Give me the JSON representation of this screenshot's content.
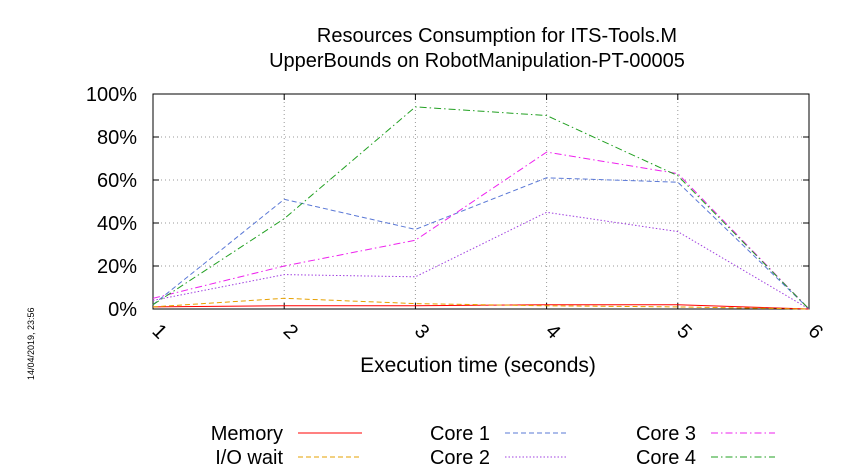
{
  "chart_data": {
    "type": "line",
    "title_lines": [
      "Resources Consumption for ITS-Tools.M",
      "UpperBounds on RobotManipulation-PT-00005"
    ],
    "xlabel": "Execution time (seconds)",
    "ylabel": "",
    "x": [
      1,
      2,
      3,
      4,
      5,
      6
    ],
    "x_tick_labels": [
      "1",
      "2",
      "3",
      "4",
      "5",
      "6"
    ],
    "xlim": [
      1,
      6
    ],
    "ylim": [
      0,
      100
    ],
    "y_ticks": [
      0,
      20,
      40,
      60,
      80,
      100
    ],
    "y_tick_labels": [
      "0%",
      "20%",
      "40%",
      "60%",
      "80%",
      "100%"
    ],
    "grid": true,
    "legend_position": "bottom",
    "timestamp": "14/04/2019, 23:56",
    "series": [
      {
        "name": "Memory",
        "color": "#ff0000",
        "dash": "solid",
        "values": [
          1,
          1.5,
          1.5,
          2,
          2,
          0
        ]
      },
      {
        "name": "I/O wait",
        "color": "#e6a000",
        "dash": "dash",
        "values": [
          1,
          5,
          2.5,
          1.5,
          1,
          0
        ]
      },
      {
        "name": "Core 1",
        "color": "#5a78d6",
        "dash": "dash",
        "values": [
          2,
          51,
          37,
          61,
          59,
          0
        ]
      },
      {
        "name": "Core 2",
        "color": "#a040e0",
        "dash": "dot",
        "values": [
          4,
          16,
          15,
          45,
          36,
          0
        ]
      },
      {
        "name": "Core 3",
        "color": "#ee22ee",
        "dash": "dashdot",
        "values": [
          5,
          20,
          32,
          73,
          63,
          0
        ]
      },
      {
        "name": "Core 4",
        "color": "#22a022",
        "dash": "dashdot",
        "values": [
          2,
          42,
          94,
          90,
          62,
          0
        ]
      }
    ]
  }
}
